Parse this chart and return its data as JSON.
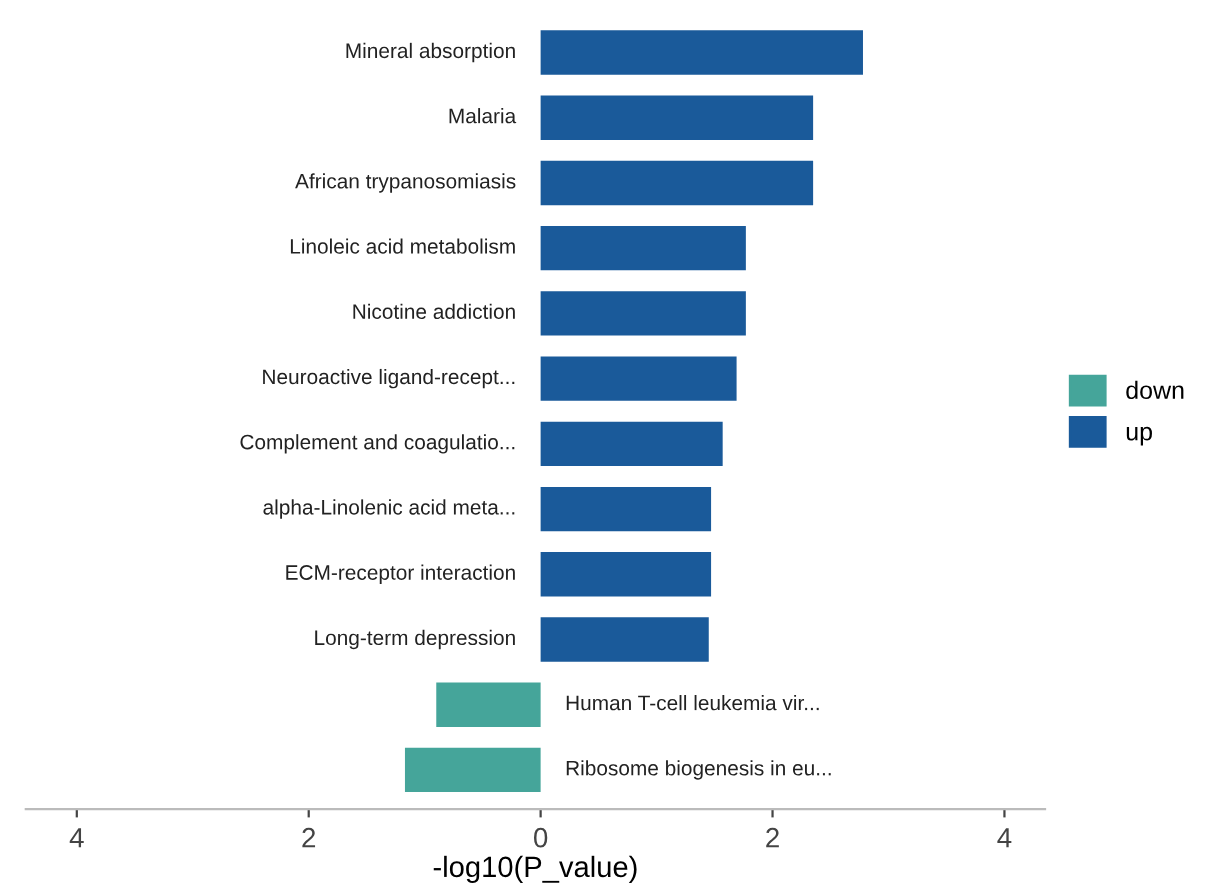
{
  "chart_data": {
    "type": "bar",
    "orientation": "horizontal",
    "xlabel": "-log10(P_value)",
    "categories": [
      "Mineral absorption",
      "Malaria",
      "African trypanosomiasis",
      "Linoleic acid metabolism",
      "Nicotine addiction",
      "Neuroactive ligand-recept...",
      "Complement and coagulatio...",
      "alpha-Linolenic acid meta...",
      "ECM-receptor interaction",
      "Long-term depression",
      "Human T-cell leukemia vir...",
      "Ribosome biogenesis in eu..."
    ],
    "series": [
      {
        "name": "down",
        "color": "#45a59a",
        "values": [
          null,
          null,
          null,
          null,
          null,
          null,
          null,
          null,
          null,
          null,
          -0.9,
          -1.17
        ]
      },
      {
        "name": "up",
        "color": "#1a5a9a",
        "values": [
          2.78,
          2.35,
          2.35,
          1.77,
          1.77,
          1.69,
          1.57,
          1.47,
          1.47,
          1.45,
          null,
          null
        ]
      }
    ],
    "xlim": [
      -4.44,
      4.35
    ],
    "xticks": [
      {
        "value": -4,
        "label": "4"
      },
      {
        "value": -2,
        "label": "2"
      },
      0,
      2,
      4
    ],
    "grid": false,
    "legend": "right"
  }
}
